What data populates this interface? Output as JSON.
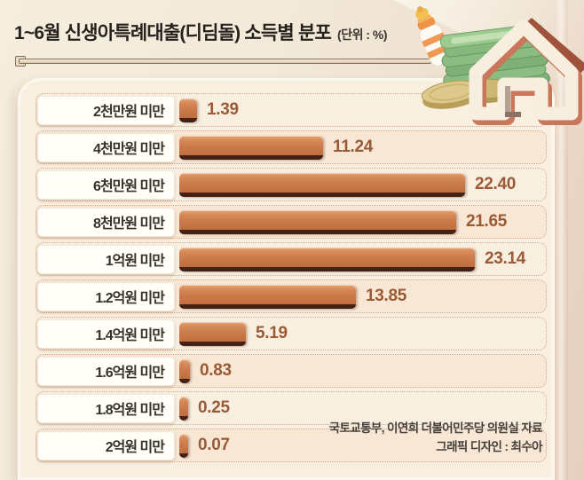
{
  "header": {
    "title": "1~6월 신생아특례대출(디딤돌) 소득별 분포",
    "unit_note": "(단위 : %)"
  },
  "chart_data": {
    "type": "bar",
    "orientation": "horizontal",
    "title": "1~6월 신생아특례대출(디딤돌) 소득별 분포",
    "unit": "%",
    "categories": [
      "2천만원 미만",
      "4천만원 미만",
      "6천만원 미만",
      "8천만원 미만",
      "1억원 미만",
      "1.2억원 미만",
      "1.4억원 미만",
      "1.6억원 미만",
      "1.8억원 미만",
      "2억원 미만"
    ],
    "values": [
      1.39,
      11.24,
      22.4,
      21.65,
      23.14,
      13.85,
      5.19,
      0.83,
      0.25,
      0.07
    ],
    "values_display": [
      "1.39",
      "11.24",
      "22.40",
      "21.65",
      "23.14",
      "13.85",
      "5.19",
      "0.83",
      "0.25",
      "0.07"
    ],
    "xlim": [
      0,
      25
    ],
    "grid": false,
    "legend": "none",
    "value_labels_shown": true,
    "bar_color": "#c97a4a",
    "bar_shadow_color": "#432115",
    "value_label_color": "#9a5a36"
  },
  "source": {
    "line1": "국토교통부, 이연희 더불어민주당 의원실 자료",
    "line2": "그래픽 디자인 : 최수아"
  },
  "decoration": {
    "icons": [
      "baby-bottle-icon",
      "cash-stack-icon",
      "coins-icon",
      "house-icon"
    ]
  },
  "colors": {
    "background": "#f2e8da",
    "panel": "#f9efe1",
    "label_box": "#fffef9",
    "dotted_border": "#cfa98b",
    "title_text": "#25211d",
    "house_accent": "#cf7b57",
    "cash_green": "#8fc186",
    "coin_gold": "#dcc98b"
  }
}
